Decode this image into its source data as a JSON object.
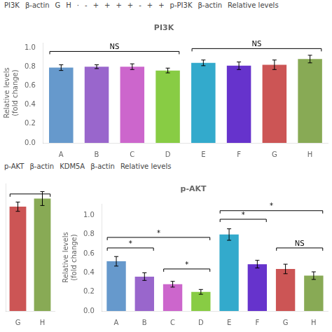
{
  "chart_data": [
    {
      "type": "bar",
      "title": "PI3K",
      "ylabel": "Relative levels\n(fold change)",
      "categories": [
        "A",
        "B",
        "C",
        "D",
        "E",
        "F",
        "G",
        "H"
      ],
      "values": [
        0.79,
        0.8,
        0.8,
        0.76,
        0.84,
        0.81,
        0.82,
        0.88
      ],
      "errors": [
        0.03,
        0.02,
        0.03,
        0.025,
        0.03,
        0.04,
        0.05,
        0.04
      ],
      "colors": [
        "#6699cc",
        "#9966cc",
        "#cc66cc",
        "#88cc44",
        "#33aacc",
        "#6633cc",
        "#cc5555",
        "#88aa55"
      ],
      "ylim": [
        0.0,
        1.05
      ],
      "yticks": [
        {
          "value": 0.0,
          "label": "0.0"
        },
        0.2,
        0.4,
        0.6,
        0.8,
        {
          "value": 1.0,
          "label": "1.0"
        }
      ],
      "grid": false,
      "annotations": [
        {
          "text": "NS",
          "from": "A",
          "to": "D",
          "y": 0.96
        },
        {
          "text": "NS",
          "from": "E",
          "to": "H",
          "y": 0.99
        },
        {
          "text": "PI3K"
        },
        {
          "text": "β-actin"
        },
        {
          "text": "G"
        },
        {
          "text": "H"
        },
        {
          "text": "·"
        },
        {
          "text": "-"
        },
        {
          "text": "+"
        },
        {
          "text": "+"
        },
        {
          "text": "+"
        },
        {
          "text": "+"
        },
        {
          "text": "-"
        },
        {
          "text": "+"
        },
        {
          "text": "+"
        },
        {
          "text": "p-PI3K"
        },
        {
          "text": "β-actin"
        },
        {
          "text": "Relative levels"
        }
      ]
    },
    {
      "type": "bar",
      "categories": [
        "G",
        "H"
      ],
      "values": [
        0.9,
        0.97
      ],
      "errors": [
        0.04,
        0.06
      ],
      "colors": [
        "#cc5555",
        "#88aa55"
      ],
      "ylim": [
        0.0,
        1.1
      ],
      "tick_labels": "x",
      "grid": false,
      "annotations": [
        {
          "from": "G",
          "to": "H",
          "y": 1.01
        }
      ]
    },
    {
      "type": "bar",
      "title": "p-AKT",
      "ylabel": "Relative levels\n(fold change)",
      "categories": [
        "A",
        "B",
        "C",
        "D",
        "E",
        "F",
        "G",
        "H"
      ],
      "values": [
        0.52,
        0.36,
        0.28,
        0.2,
        0.8,
        0.49,
        0.44,
        0.37
      ],
      "errors": [
        0.05,
        0.04,
        0.03,
        0.025,
        0.06,
        0.04,
        0.05,
        0.04
      ],
      "colors": [
        "#6699cc",
        "#9966cc",
        "#cc66cc",
        "#88cc44",
        "#33aacc",
        "#6633cc",
        "#cc5555",
        "#88aa55"
      ],
      "ylim": [
        0.0,
        1.12
      ],
      "yticks": [
        {
          "value": 0.0,
          "label": "0.0"
        },
        0.2,
        0.4,
        0.6,
        0.8,
        {
          "value": 1.0,
          "label": "1.0"
        }
      ],
      "grid": false,
      "annotations": [
        {
          "text": "*",
          "from": "A",
          "to": "B",
          "y": 0.66
        },
        {
          "text": "*",
          "from": "A",
          "to": "D",
          "y": 0.77
        },
        {
          "text": "*",
          "from": "C",
          "to": "D",
          "y": 0.44
        },
        {
          "text": "*",
          "from": "E",
          "to": "F",
          "y": 0.96
        },
        {
          "text": "*",
          "from": "E",
          "to": "H",
          "y": 1.05
        },
        {
          "text": "NS",
          "from": "G",
          "to": "H",
          "y": 0.66
        },
        {
          "text": "p-AKT"
        },
        {
          "text": "β-actin"
        },
        {
          "text": "KDM5A"
        },
        {
          "text": "β-actin"
        },
        {
          "text": "Relative levels"
        }
      ]
    }
  ]
}
